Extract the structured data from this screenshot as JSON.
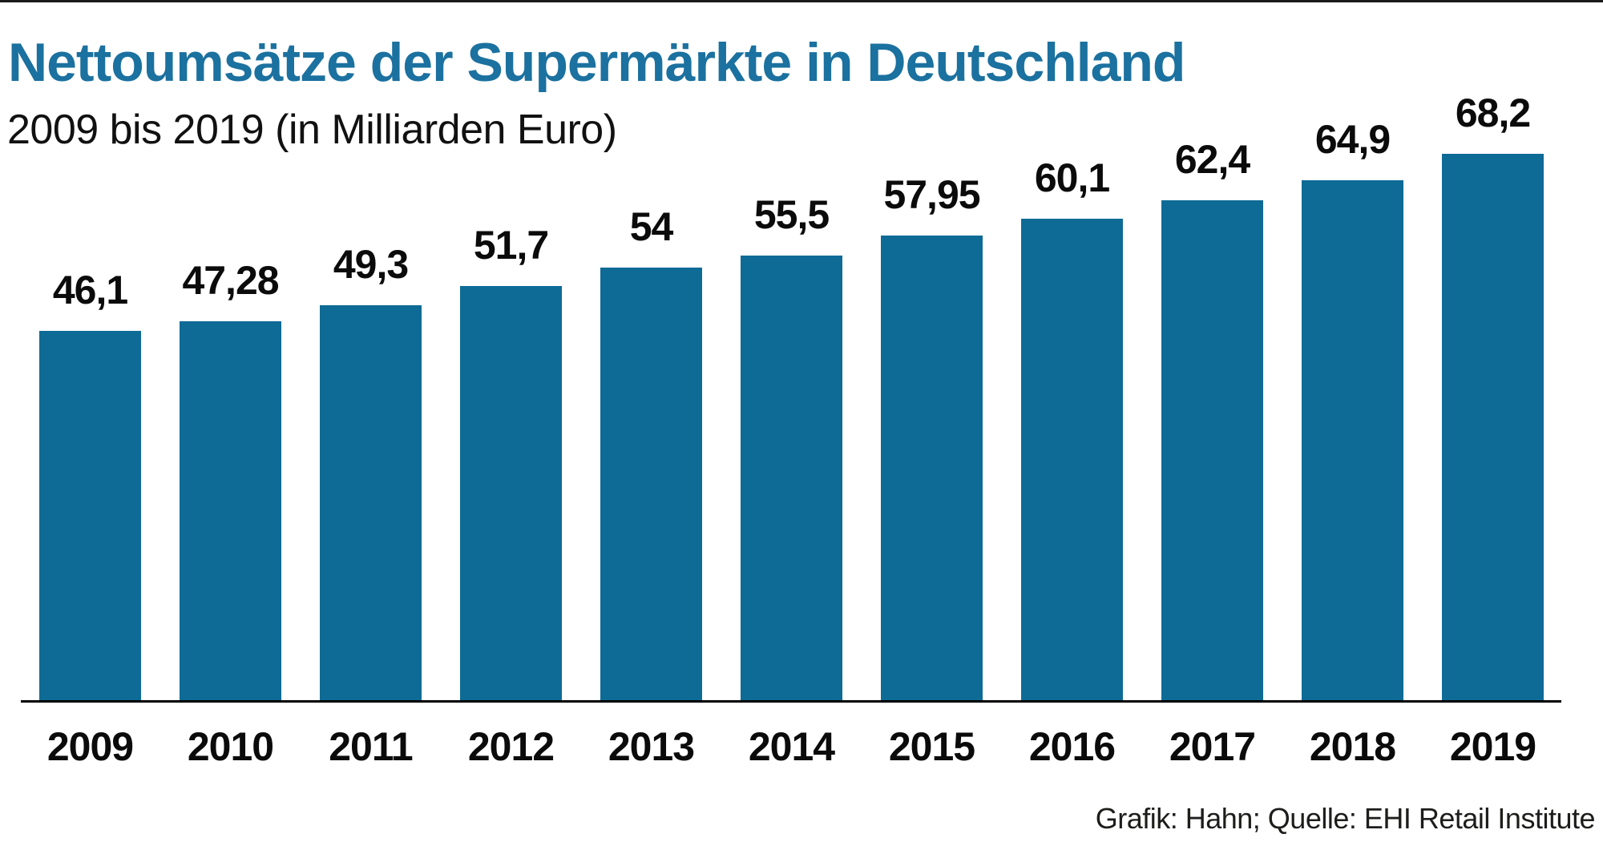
{
  "header": {
    "title": "Nettoumsätze der Supermärkte in Deutschland",
    "subtitle": "2009 bis 2019 (in Milliarden Euro)"
  },
  "footer": {
    "source": "Grafik: Hahn; Quelle: EHI Retail Institute"
  },
  "colors": {
    "title": "#1b719f",
    "bar": "#0e6b96",
    "axis": "#000000",
    "label_text": "#0b0b0b",
    "source_text": "#1d1d1b",
    "top_rule": "#1a1a1a",
    "background": "#ffffff"
  },
  "chart_data": {
    "type": "bar",
    "title": "Nettoumsätze der Supermärkte in Deutschland",
    "subtitle": "2009 bis 2019 (in Milliarden Euro)",
    "unit": "Milliarden Euro",
    "categories": [
      "2009",
      "2010",
      "2011",
      "2012",
      "2013",
      "2014",
      "2015",
      "2016",
      "2017",
      "2018",
      "2019"
    ],
    "values": [
      46.1,
      47.28,
      49.3,
      51.7,
      54,
      55.5,
      57.95,
      60.1,
      62.4,
      64.9,
      68.2
    ],
    "value_labels": [
      "46,1",
      "47,28",
      "49,3",
      "51,7",
      "54",
      "55,5",
      "57,95",
      "60,1",
      "62,4",
      "64,9",
      "68,2"
    ],
    "ylim": [
      0,
      70
    ],
    "grid": false,
    "legend": null,
    "data_labels_position": "above-bars",
    "source": "Grafik: Hahn; Quelle: EHI Retail Institute"
  }
}
